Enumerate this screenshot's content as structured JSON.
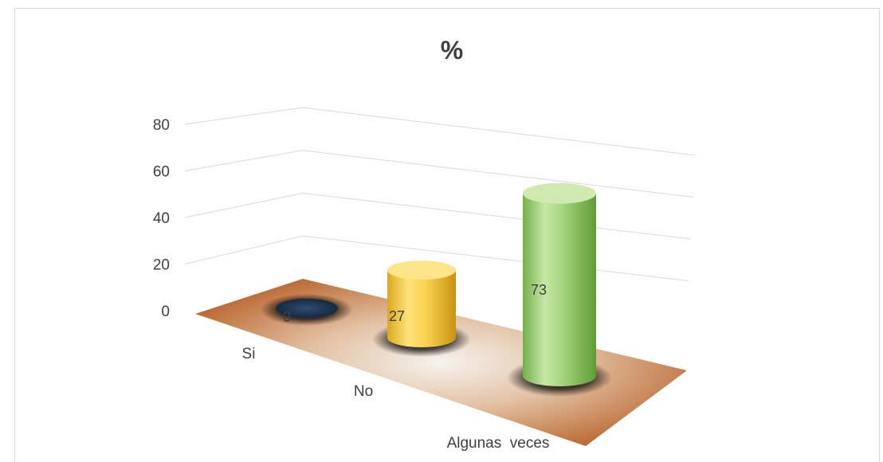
{
  "chart_data": {
    "type": "bar",
    "title": "%",
    "categories": [
      "Si",
      "No",
      "Algunas  veces"
    ],
    "values": [
      0,
      27,
      73
    ],
    "data_labels": [
      "0",
      "27",
      "73"
    ],
    "y_ticks": [
      "0",
      "20",
      "40",
      "60",
      "80"
    ],
    "ylim": [
      0,
      80
    ],
    "xlabel": "",
    "ylabel": "",
    "grid": true,
    "legend": "none",
    "colors": {
      "Si": "#1f3a5a",
      "No": "#f2c94c",
      "Algunas  veces": "#92d050",
      "floor": "#c8753a",
      "gridline": "#d9d9d9",
      "text": "#404040"
    }
  }
}
